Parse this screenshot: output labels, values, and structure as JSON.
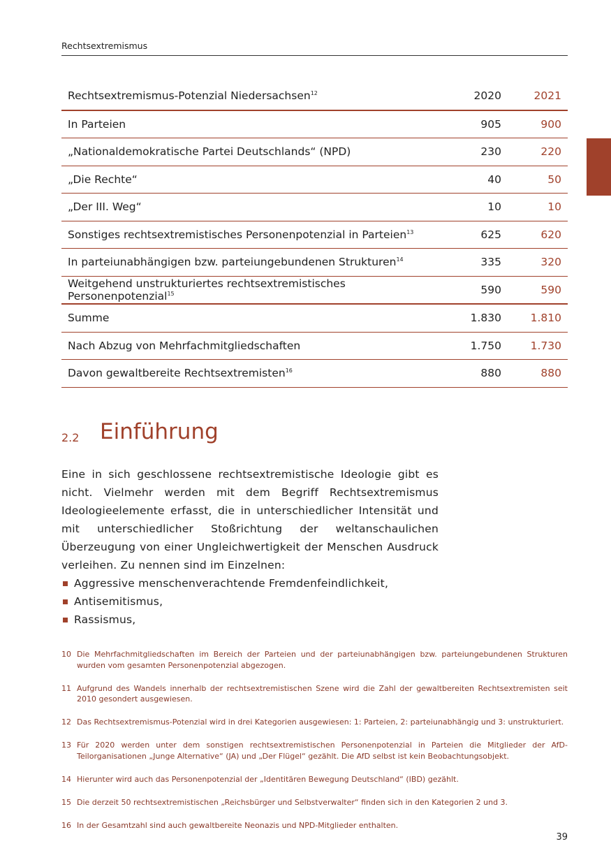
{
  "header": {
    "running_title": "Rechtsextremismus"
  },
  "table": {
    "title": "Rechtsextremismus-Potenzial Niedersachsen",
    "title_sup": "12",
    "col_2020": "2020",
    "col_2021": "2021",
    "rows": [
      {
        "label": "In Parteien",
        "sup": "",
        "v2020": "905",
        "v2021": "900"
      },
      {
        "label": "„Nationaldemokratische Partei Deutschlands“ (NPD)",
        "sup": "",
        "v2020": "230",
        "v2021": "220"
      },
      {
        "label": "„Die Rechte“",
        "sup": "",
        "v2020": "40",
        "v2021": "50"
      },
      {
        "label": "„Der III. Weg“",
        "sup": "",
        "v2020": "10",
        "v2021": "10"
      },
      {
        "label": "Sonstiges rechtsextremistisches Personenpotenzial in Parteien",
        "sup": "13",
        "v2020": "625",
        "v2021": "620"
      },
      {
        "label": "In parteiunabhängigen bzw. parteiungebundenen Strukturen",
        "sup": "14",
        "v2020": "335",
        "v2021": "320"
      },
      {
        "label": "Weitgehend unstrukturiertes rechtsextremistisches Personenpotenzial",
        "sup": "15",
        "v2020": "590",
        "v2021": "590"
      },
      {
        "label": "Summe",
        "sup": "",
        "v2020": "1.830",
        "v2021": "1.810"
      },
      {
        "label": "Nach Abzug von Mehrfachmitgliedschaften",
        "sup": "",
        "v2020": "1.750",
        "v2021": "1.730"
      },
      {
        "label": "Davon gewaltbereite Rechtsextremisten",
        "sup": "16",
        "v2020": "880",
        "v2021": "880"
      }
    ]
  },
  "section": {
    "number": "2.2",
    "title": "Einführung",
    "paragraph": "Eine in sich geschlossene rechtsextremistische Ideologie gibt es nicht. Vielmehr werden mit dem Begriff Rechtsextremismus Ideologieelemente erfasst, die in unterschiedlicher Intensität und mit unterschiedlicher Stoßrichtung der weltanschaulichen Überzeugung von einer Ungleichwertigkeit der Menschen Ausdruck verleihen. Zu nennen sind im Einzelnen:",
    "bullets": [
      "Aggressive menschenverachtende Fremdenfeindlichkeit,",
      "Antisemitismus,",
      "Rassismus,"
    ]
  },
  "footnotes": [
    {
      "num": "10",
      "text": "Die Mehrfachmitgliedschaften im Bereich der Parteien und der parteiunabhängigen bzw. parteiungebundenen Strukturen wurden vom gesamten Personenpotenzial abgezogen."
    },
    {
      "num": "11",
      "text": "Aufgrund des Wandels innerhalb der rechtsextremistischen Szene wird die Zahl der gewaltbereiten Rechtsextremisten seit 2010 gesondert ausgewiesen."
    },
    {
      "num": "12",
      "text": "Das Rechtsextremismus-Potenzial wird in drei Kategorien ausgewiesen: 1: Parteien, 2: parteiunabhängig und 3: unstrukturiert."
    },
    {
      "num": "13",
      "text": "Für 2020 werden unter dem sonstigen rechtsextremistischen Personenpotenzial in Parteien die Mitglieder der AfD-Teilorganisationen „Junge Alternative“ (JA) und „Der Flügel“ gezählt. Die AfD selbst ist kein Beobachtungsobjekt."
    },
    {
      "num": "14",
      "text": "Hierunter wird auch das Personenpotenzial der „Identitären Bewegung Deutschland“ (IBD) gezählt."
    },
    {
      "num": "15",
      "text": "Die derzeit 50 rechtsextremistischen „Reichsbürger und Selbstverwalter“ finden sich in den Kategorien 2 und 3."
    },
    {
      "num": "16",
      "text": "In der Gesamtzahl sind auch gewaltbereite Neonazis und NPD-Mitglieder enthalten."
    }
  ],
  "page_number": "39",
  "colors": {
    "accent": "#a0412b",
    "footnote": "#8a3a2a"
  }
}
